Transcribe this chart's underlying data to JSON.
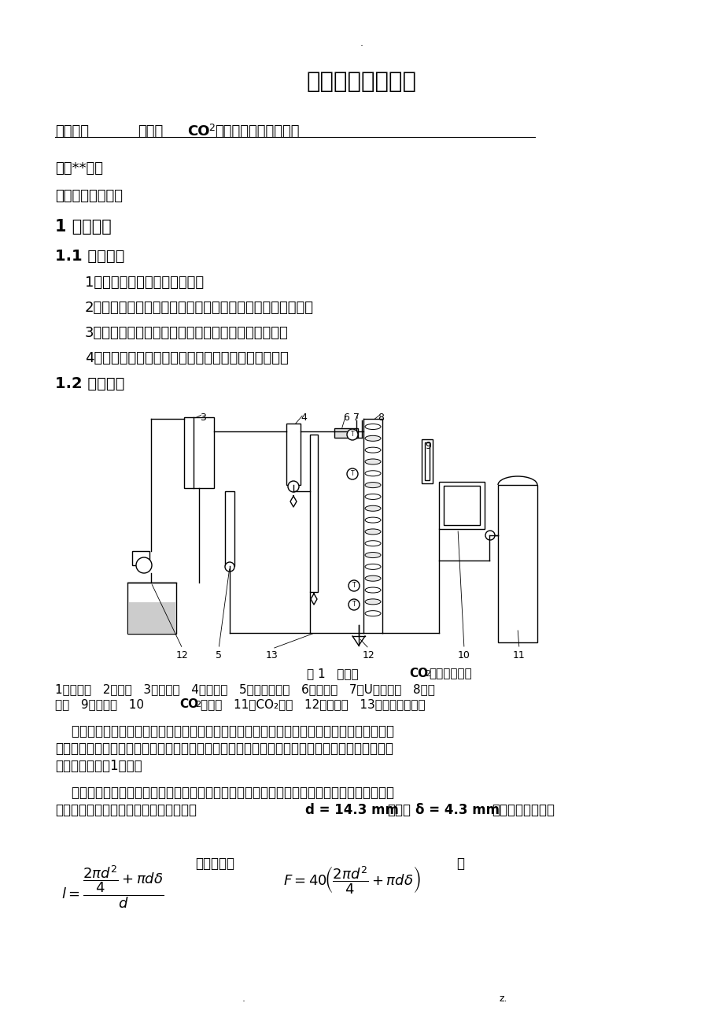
{
  "bg_color": "#ffffff",
  "title": "化工基础实验报告",
  "exp_name_label": "实验名称",
  "exp_name_value": "圆盘塔CO₂吸收液膜传质系数测定",
  "class_line": "班级**成绩",
  "time_line": "实验时间同组成员",
  "sec1_title": "1 实验预习",
  "sec11_title": "1.1 实验目的",
  "list_items": [
    "1、了解传质系数的测定方法；",
    "2、测定氧解吸塔内空塔气速与液体流量对传质系数的影响；",
    "3、掌握气液吸收过程液膜传质系数的实验测定方法；",
    "4、关联圆盘塔液膜传质系数与液流速率之间的关系。"
  ],
  "sec12_title": "1.2 实验原理",
  "fig_caption": "图 1   圆盘塔CO₂吸收实验流程",
  "legend1": "1、贮液罐   2、水泵   3、高位槽   4、流量计   5、皂膜流量计   6、加热器   7、U型测压管   8、圆",
  "legend2": "盘塔   9、加热器   10、水饱和器   11、CO₂钢瓶   12、三通阀   13、琵琶型液封器",
  "para1_lines": [
    "    圆盘塔是一种小型实验室吸收装置，液体从一个圆盘流至另一个圆盘，类似于填充塔中液体从",
    "一个填料流至下一个填料，流体在下降吸收过程中交替地进行了一系列混合和不稳定传质过程，整",
    "个流程装置如图1所示。"
  ],
  "para2_lines": [
    "    装置中的有关尺寸：圆盘塔中的圆盘为素瓷材质，圆盘塔内系一根不锈钢丝串连四十个相互垂",
    "交义的圆盘而成。每一圆盘的尺寸为直径"
  ],
  "para2_d": "d = 14.3 mm",
  "para2_mid": "，厚度",
  "para2_delta": "δ = 4.3 mm",
  "para2_end": "，平均液流周边数",
  "bottom_dot": ".",
  "bottom_z": "z."
}
